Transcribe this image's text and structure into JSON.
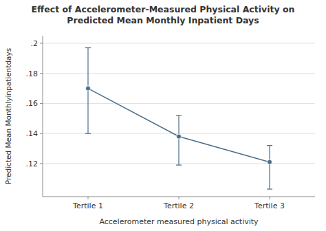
{
  "chart_data": {
    "type": "line",
    "title": "Effect of Accelerometer-Measured Physical Activity on\nPredicted Mean Monthly Inpatient Days",
    "x_label": "Accelerometer measured physical activity",
    "y_label": "Predicted Mean Monthlyinpatientdays",
    "categories": [
      "Tertile 1",
      "Tertile 2",
      "Tertile 3"
    ],
    "values": [
      0.17,
      0.138,
      0.121
    ],
    "upper": [
      0.197,
      0.152,
      0.132
    ],
    "lower": [
      0.14,
      0.119,
      0.103
    ],
    "ylim": [
      0.098,
      0.205
    ],
    "yticks": [
      {
        "value": 0.12,
        "label": ".12"
      },
      {
        "value": 0.14,
        "label": ".14"
      },
      {
        "value": 0.16,
        "label": ".16"
      },
      {
        "value": 0.18,
        "label": ".18"
      },
      {
        "value": 0.2,
        "label": ".2"
      }
    ],
    "color": "#4a6e8a",
    "marker": "circle",
    "grid": true
  }
}
